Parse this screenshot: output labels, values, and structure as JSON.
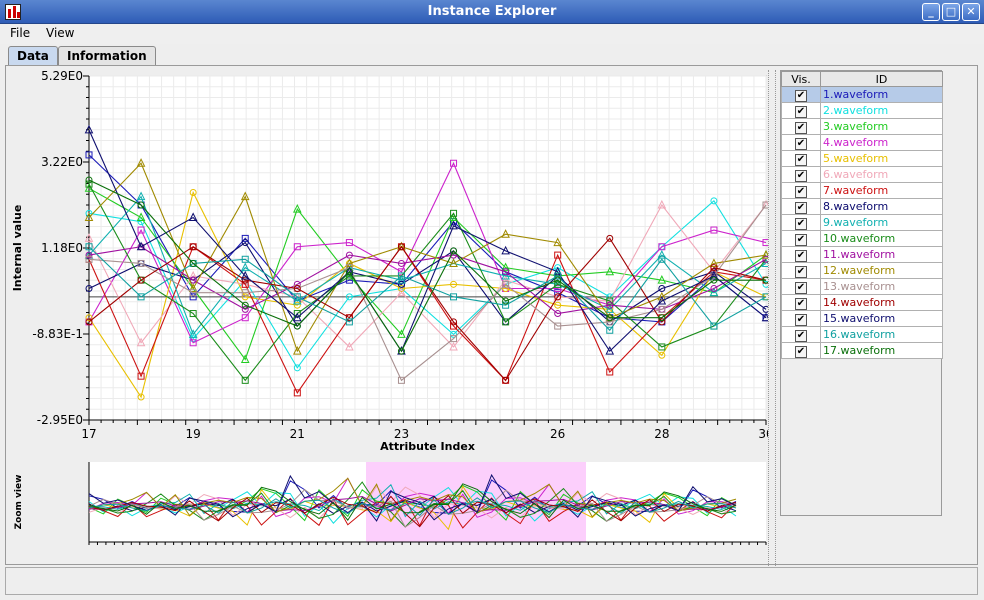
{
  "window": {
    "title": "Instance Explorer"
  },
  "menu": {
    "file": "File",
    "view": "View"
  },
  "tabs": [
    {
      "label": "Data"
    },
    {
      "label": "Information"
    }
  ],
  "table": {
    "headers": {
      "vis": "Vis.",
      "id": "ID"
    },
    "check_glyph": "✔",
    "rows": [
      {
        "id": "1.waveform",
        "color": "#1a1ab8"
      },
      {
        "id": "2.waveform",
        "color": "#11e0e0"
      },
      {
        "id": "3.waveform",
        "color": "#22cc22"
      },
      {
        "id": "4.waveform",
        "color": "#cc22cc"
      },
      {
        "id": "5.waveform",
        "color": "#e8c000"
      },
      {
        "id": "6.waveform",
        "color": "#f0a8b8"
      },
      {
        "id": "7.waveform",
        "color": "#cc1111"
      },
      {
        "id": "8.waveform",
        "color": "#0b0b6e"
      },
      {
        "id": "9.waveform",
        "color": "#10b0b0"
      },
      {
        "id": "10.waveform",
        "color": "#1a8c1a"
      },
      {
        "id": "11.waveform",
        "color": "#a010a0"
      },
      {
        "id": "12.waveform",
        "color": "#a08a00"
      },
      {
        "id": "13.waveform",
        "color": "#a89090"
      },
      {
        "id": "14.waveform",
        "color": "#a00000"
      },
      {
        "id": "15.waveform",
        "color": "#101070"
      },
      {
        "id": "16.waveform",
        "color": "#10a0a0"
      },
      {
        "id": "17.waveform",
        "color": "#0a700a"
      }
    ]
  },
  "chart_data": {
    "type": "line",
    "xlabel": "Attribute Index",
    "ylabel": "Internal value",
    "zoom_label": "Zoom view",
    "xlim": [
      17,
      30
    ],
    "ylim": [
      -2.95,
      5.29
    ],
    "x_tick_labels": [
      "17",
      "19",
      "21",
      "23",
      "26",
      "28",
      "30"
    ],
    "y_tick_labels": [
      "5.29E0",
      "3.22E0",
      "1.18E0",
      "-8.83E-1",
      "-2.95E0"
    ],
    "x": [
      17,
      18,
      19,
      20,
      21,
      22,
      23,
      24,
      25,
      26,
      27,
      28,
      29,
      30
    ],
    "series": [
      {
        "values": [
          3.4,
          2.2,
          0.0,
          1.4,
          -0.1,
          0.4,
          0.3,
          1.8,
          0.6,
          0.1,
          -0.5,
          -0.6,
          0.5,
          -0.5
        ]
      },
      {
        "values": [
          2.0,
          1.8,
          -1.0,
          0.4,
          -1.7,
          0.0,
          0.2,
          -0.9,
          0.3,
          0.7,
          0.0,
          1.2,
          2.3,
          0.3
        ]
      },
      {
        "values": [
          2.6,
          1.9,
          0.2,
          -1.5,
          2.1,
          0.5,
          -0.9,
          1.9,
          0.7,
          0.5,
          0.6,
          0.4,
          0.1,
          1.0
        ]
      },
      {
        "values": [
          -0.6,
          1.6,
          -1.1,
          -0.5,
          1.2,
          1.3,
          0.6,
          3.2,
          0.2,
          0.2,
          -0.2,
          1.2,
          1.6,
          1.3
        ]
      },
      {
        "values": [
          -0.5,
          -2.4,
          2.5,
          0.0,
          -0.2,
          0.8,
          0.2,
          0.3,
          0.2,
          -0.2,
          -0.3,
          -1.4,
          0.6,
          0.0
        ]
      },
      {
        "values": [
          1.4,
          -1.1,
          0.5,
          0.3,
          0.0,
          -1.2,
          0.1,
          -1.2,
          0.4,
          0.0,
          -0.1,
          2.2,
          0.6,
          2.2
        ]
      },
      {
        "values": [
          0.9,
          -1.9,
          1.2,
          0.3,
          -2.3,
          -0.5,
          1.2,
          -0.7,
          -2.0,
          1.0,
          -1.8,
          -0.5,
          0.6,
          0.4
        ]
      },
      {
        "values": [
          0.2,
          0.8,
          0.4,
          1.3,
          -0.7,
          0.6,
          0.3,
          1.1,
          -0.6,
          0.5,
          -0.6,
          0.2,
          0.6,
          -0.3
        ]
      },
      {
        "values": [
          1.0,
          2.4,
          -0.9,
          0.7,
          -0.1,
          0.7,
          0.4,
          0.8,
          0.5,
          0.3,
          -0.3,
          1.0,
          0.1,
          0.8
        ]
      },
      {
        "values": [
          2.7,
          0.4,
          -0.4,
          -2.0,
          -0.4,
          0.5,
          0.5,
          2.0,
          -0.6,
          0.3,
          -0.1,
          -1.2,
          -0.7,
          0.9
        ]
      },
      {
        "values": [
          1.0,
          1.2,
          0.4,
          -0.3,
          0.3,
          1.0,
          0.8,
          1.0,
          0.6,
          -0.4,
          -0.2,
          -0.3,
          0.2,
          0.9
        ]
      },
      {
        "values": [
          1.9,
          3.2,
          0.2,
          2.4,
          -1.3,
          0.8,
          1.2,
          0.8,
          1.5,
          1.3,
          -0.5,
          0.0,
          0.8,
          1.0
        ]
      },
      {
        "values": [
          0.9,
          0.8,
          0.1,
          0.1,
          0.2,
          0.7,
          -2.0,
          -1.0,
          0.3,
          -0.7,
          -0.6,
          -0.3,
          0.5,
          2.2
        ]
      },
      {
        "values": [
          -0.6,
          0.4,
          1.2,
          0.4,
          0.2,
          -0.5,
          1.2,
          -0.6,
          -2.0,
          0.0,
          1.4,
          -0.6,
          0.7,
          0.4
        ]
      },
      {
        "values": [
          4.0,
          1.2,
          1.9,
          0.5,
          -0.5,
          0.6,
          -1.3,
          1.7,
          1.1,
          0.6,
          -1.3,
          -0.1,
          0.5,
          -0.5
        ]
      },
      {
        "values": [
          1.2,
          0.0,
          0.8,
          0.9,
          0.0,
          -0.6,
          0.5,
          0.0,
          -0.2,
          0.5,
          -0.8,
          0.9,
          -0.7,
          0.0
        ]
      },
      {
        "values": [
          2.8,
          2.2,
          0.8,
          -0.2,
          -0.7,
          0.6,
          -1.3,
          1.1,
          -0.1,
          0.4,
          -0.5,
          -0.5,
          0.4,
          0.4
        ]
      }
    ]
  }
}
